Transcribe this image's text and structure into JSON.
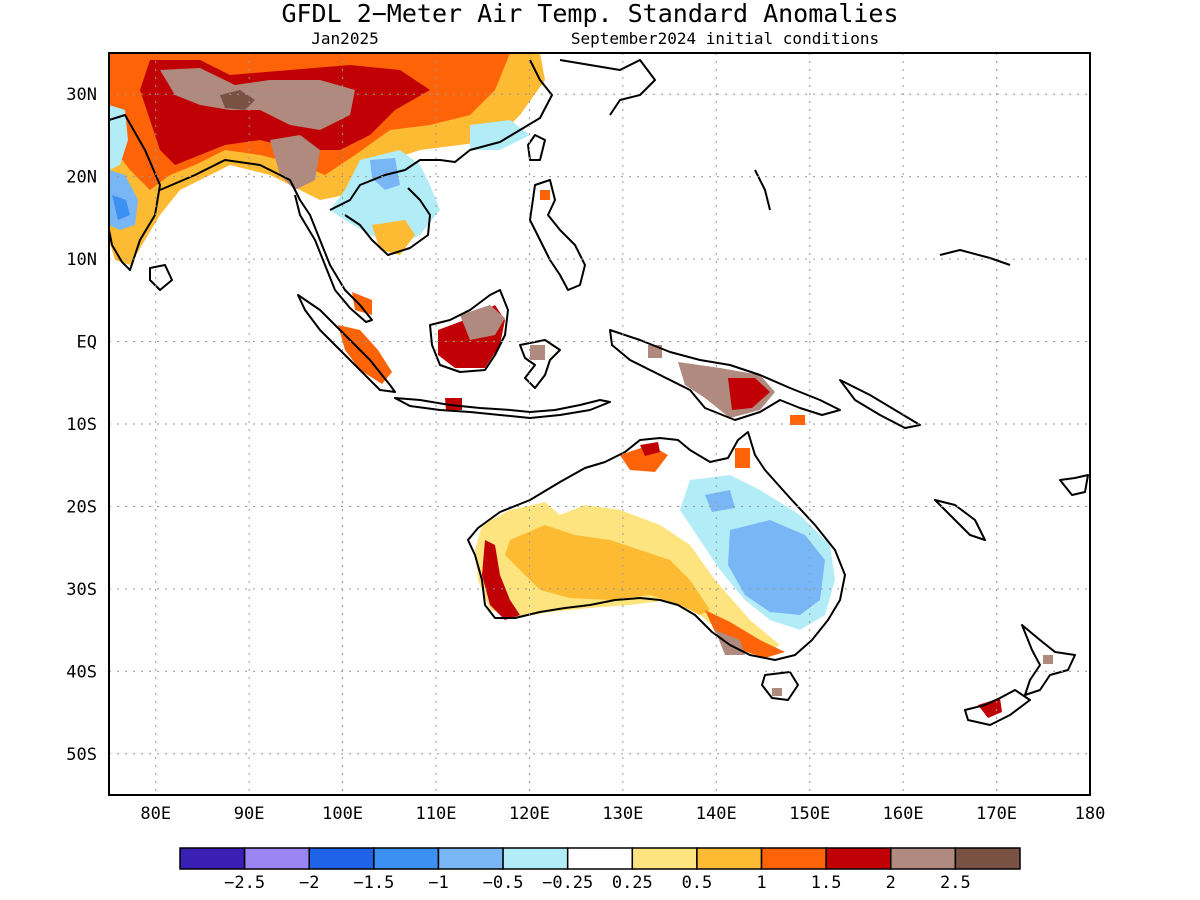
{
  "title": "GFDL 2−Meter Air Temp. Standard Anomalies",
  "subtitle_left": "Jan2025",
  "subtitle_right": "September2024 initial conditions",
  "axes": {
    "lon_labels": [
      "80E",
      "90E",
      "100E",
      "110E",
      "120E",
      "130E",
      "140E",
      "150E",
      "160E",
      "170E",
      "180"
    ],
    "lat_labels": [
      "30N",
      "20N",
      "10N",
      "EQ",
      "10S",
      "20S",
      "30S",
      "40S",
      "50S"
    ]
  },
  "colorbar": {
    "colors": [
      "#3a1fb5",
      "#9b85f5",
      "#1f63e8",
      "#3c90f2",
      "#78b6f5",
      "#b2ecf7",
      "#ffffff",
      "#fde47f",
      "#fdbb33",
      "#ff6308",
      "#c00005",
      "#b08a7f",
      "#7a5244"
    ],
    "tick_labels": [
      "−2.5",
      "−2",
      "−1.5",
      "−1",
      "−0.5",
      "−0.25",
      "0.25",
      "0.5",
      "1",
      "1.5",
      "2",
      "2.5"
    ]
  }
}
